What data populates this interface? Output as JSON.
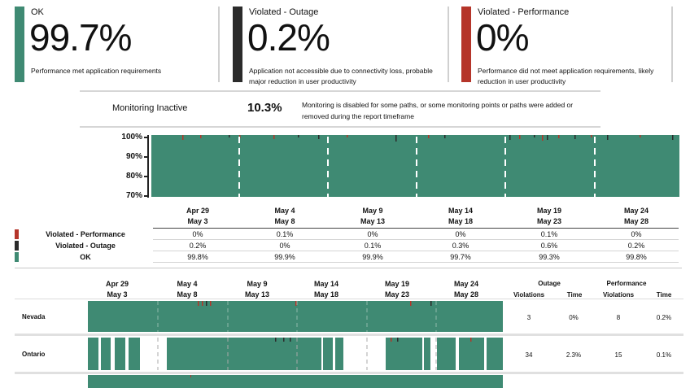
{
  "kpis": [
    {
      "label": "OK",
      "value": "99.7%",
      "desc": "Performance met application requirements",
      "color": "#3f8a73"
    },
    {
      "label": "Violated - Outage",
      "value": "0.2%",
      "desc": "Application not accessible due to connectivity loss, probable major reduction in user productivity",
      "color": "#2b2b2b"
    },
    {
      "label": "Violated - Performance",
      "value": "0%",
      "desc": "Performance did not meet application requirements, likely reduction in user productivity",
      "color": "#b5352a"
    }
  ],
  "inactive": {
    "title": "Monitoring Inactive",
    "value": "10.3%",
    "desc": "Monitoring is disabled for some paths, or some monitoring points or paths were added or removed during the report timeframe"
  },
  "chart_data": {
    "type": "area",
    "y_axis_labels": [
      "100%",
      "90%",
      "80%",
      "70%"
    ],
    "ylim": [
      70,
      100
    ],
    "periods": [
      {
        "start": "Apr 29",
        "end": "May 3"
      },
      {
        "start": "May 4",
        "end": "May 8"
      },
      {
        "start": "May 9",
        "end": "May 13"
      },
      {
        "start": "May 14",
        "end": "May 18"
      },
      {
        "start": "May 19",
        "end": "May 23"
      },
      {
        "start": "May 24",
        "end": "May 28"
      }
    ],
    "series": [
      {
        "name": "Violated - Performance",
        "color": "#b5352a",
        "values": [
          "0%",
          "0.1%",
          "0%",
          "0%",
          "0.1%",
          "0%"
        ]
      },
      {
        "name": "Violated - Outage",
        "color": "#2b2b2b",
        "values": [
          "0.2%",
          "0%",
          "0.1%",
          "0.3%",
          "0.6%",
          "0.2%"
        ]
      },
      {
        "name": "OK",
        "color": "#3f8a73",
        "values": [
          "99.8%",
          "99.9%",
          "99.9%",
          "99.7%",
          "99.3%",
          "99.8%"
        ]
      }
    ]
  },
  "locations_header": {
    "outage": "Outage",
    "performance": "Performance",
    "violations": "Violations",
    "time": "Time"
  },
  "locations": [
    {
      "name": "Nevada",
      "outage_violations": "3",
      "outage_time": "0%",
      "perf_violations": "8",
      "perf_time": "0.2%"
    },
    {
      "name": "Ontario",
      "outage_violations": "34",
      "outage_time": "2.3%",
      "perf_violations": "15",
      "perf_time": "0.1%"
    }
  ],
  "colors": {
    "ok": "#3f8a73",
    "outage": "#2b2b2b",
    "performance": "#b5352a",
    "inactive": "#ffffff"
  }
}
